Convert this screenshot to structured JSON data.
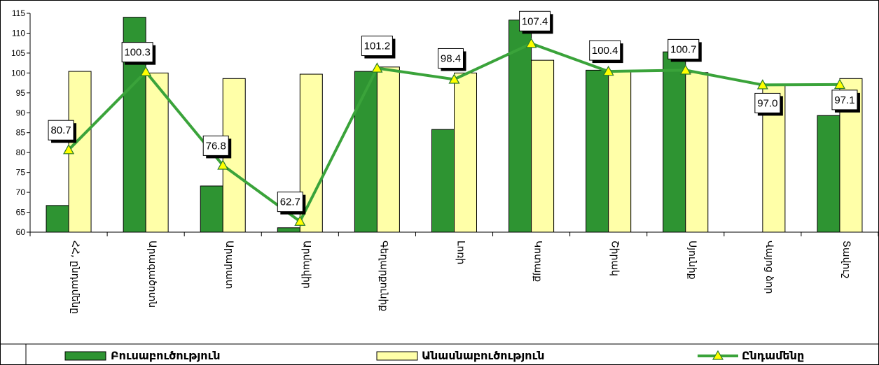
{
  "chart_data": {
    "type": "bar",
    "categories": [
      "ՀՀ, ընդամենը",
      "Արագածոտն",
      "Արարատ",
      "Արմավիր",
      "Գեղարքունիք",
      "Լոռի",
      "Կոտայք",
      "Շիրակ",
      "Սյունիք",
      "Վայոց ձոր",
      "Տավուշ"
    ],
    "series": [
      {
        "name": "Բուսաբուծություն",
        "type": "bar",
        "color": "#2e9432",
        "values": [
          66.7,
          114.0,
          71.6,
          61.1,
          100.4,
          85.8,
          113.3,
          100.7,
          105.3,
          null,
          89.3
        ]
      },
      {
        "name": "Անասնաբուծություն",
        "type": "bar",
        "color": "#ffffa8",
        "values": [
          100.4,
          100.0,
          98.6,
          99.7,
          101.5,
          100.0,
          103.2,
          100.4,
          100.1,
          97.1,
          98.6
        ]
      },
      {
        "name": "Ընդամենը",
        "type": "line",
        "color": "#3aa33a",
        "marker": "triangle",
        "marker_color": "#ffff00",
        "values": [
          80.7,
          100.3,
          76.8,
          62.7,
          101.2,
          98.4,
          107.4,
          100.4,
          100.7,
          97.0,
          97.1
        ],
        "labels": [
          "80.7",
          "100.3",
          "76.8",
          "62.7",
          "101.2",
          "98.4",
          "107.4",
          "100.4",
          "100.7",
          "97.0",
          "97.1"
        ]
      }
    ],
    "ylim": [
      60,
      115
    ],
    "yticks": [
      60,
      65,
      70,
      75,
      80,
      85,
      90,
      95,
      100,
      105,
      110,
      115
    ],
    "grid": false,
    "legend_position": "bottom"
  }
}
